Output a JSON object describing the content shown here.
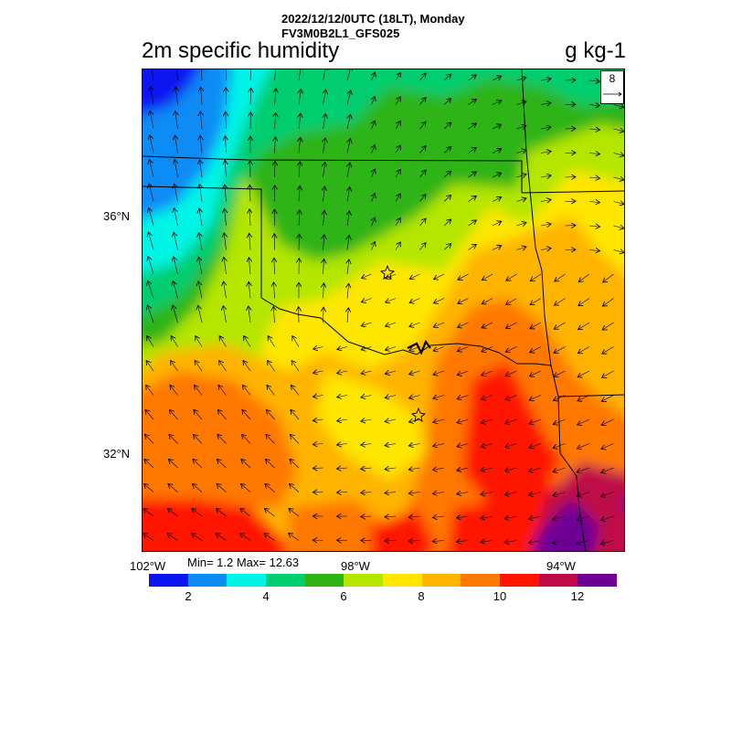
{
  "header": {
    "line1": "2022/12/12/0UTC (18LT), Monday",
    "line2": "FV3M0B2L1_GFS025"
  },
  "title": {
    "left": "2m specific humidity",
    "right": "g kg-1"
  },
  "axes": {
    "lat_labels": [
      "36°N",
      "32°N"
    ],
    "lon_labels": [
      "102°W",
      "98°W",
      "94°W"
    ]
  },
  "stats": {
    "text": "Min= 1.2 Max= 12.63",
    "min": 1.2,
    "max": 12.63
  },
  "vector_reference": {
    "label": "8",
    "value": 8
  },
  "colorbar": {
    "colors": [
      "#0a14f0",
      "#0a8cf5",
      "#00f5e6",
      "#00cd6e",
      "#2db414",
      "#b4e600",
      "#ffe600",
      "#ffb400",
      "#ff7800",
      "#ff1400",
      "#be0a46",
      "#6e0096"
    ],
    "labels": [
      "2",
      "4",
      "6",
      "8",
      "10",
      "12"
    ]
  },
  "markers": [
    {
      "name": "city-star-oklahoma-city"
    },
    {
      "name": "city-star-dallas"
    }
  ]
}
